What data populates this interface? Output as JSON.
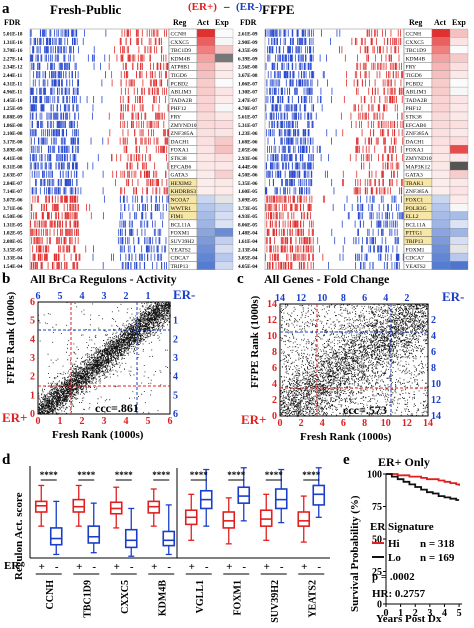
{
  "panel_a": {
    "letter": "a",
    "header_left": "(ER+)",
    "header_dash": "–",
    "header_right": "(ER-)",
    "left": {
      "title": "Fresh-Public",
      "fdr_label": "FDR",
      "reg_label": "Reg",
      "act_label": "Act",
      "exp_label": "Exp",
      "fdr_values": [
        "5.01E-18",
        "1.31E-16",
        "3.70E-16",
        "2.27E-14",
        "2.34E-12",
        "2.44E-11",
        "4.31E-11",
        "4.96E-11",
        "1.45E-10",
        "1.25E-09",
        "8.88E-09",
        "1.86E-08",
        "2.10E-08",
        "3.17E-08",
        "3.89E-08",
        "4.41E-08",
        "8.31E-08",
        "2.63E-07",
        "2.84E-07",
        "7.14E-07",
        "3.07E-06",
        "3.71E-06",
        "6.50E-06",
        "1.31E-05",
        "1.02E-05",
        "2.08E-05",
        "3.15E-05",
        "1.33E-04",
        "1.54E-04"
      ],
      "regulons": [
        "CCNH",
        "CXXC5",
        "TBC1D9",
        "KDM4B",
        "ATP8B1",
        "TIGD6",
        "PCBD2",
        "ABLIM3",
        "TADA2B",
        "PHF12",
        "FRY",
        "ZMYND10",
        "ZNF385A",
        "DACH1",
        "FOXA1",
        "STK38",
        "EFCAB6",
        "GATA3",
        "HEXIM2",
        "KHDRBS3",
        "NCOA7",
        "WWTR1",
        "FIM1",
        "BCL11A",
        "FOXM1",
        "SUV39H2",
        "YEATS2",
        "CDCA7",
        "TRIP13"
      ],
      "highlight": [
        18,
        19,
        20,
        21,
        22
      ],
      "act_colors": [
        "#e03030",
        "#e86060",
        "#f08080",
        "#f3a0a0",
        "#f7b5b5",
        "#f7c0c0",
        "#f9cccc",
        "#f9cccc",
        "#fad4d4",
        "#fad4d4",
        "#fbdada",
        "#fbdada",
        "#fce0e0",
        "#fce0e0",
        "#fce4e4",
        "#fde8e8",
        "#fde8e8",
        "#fdeaea",
        "#fdecec",
        "#fdeeee",
        "#c9d6f0",
        "#b5c6ec",
        "#a8bce8",
        "#9fb5e6",
        "#8aa5e0",
        "#7c9adc",
        "#6f90d8",
        "#6286d4",
        "#567cd0"
      ],
      "exp_colors": [
        "#fbfbfb",
        "#f7f7f7",
        "#f5c8c8",
        "#777777",
        "#fde8e8",
        "#fdeaea",
        "#fbfbfb",
        "#fce4e4",
        "#fdeaea",
        "#f7f7f7",
        "#fde8e8",
        "#fcdcdc",
        "#fde4e4",
        "#f7c9c9",
        "#f5c0c0",
        "#fce0e0",
        "#fce8e8",
        "#f9d0d0",
        "#fde8e8",
        "#fdeaea",
        "#e5e5e5",
        "#c8d4ee",
        "#d5def3",
        "#dbe3f5",
        "#6a8cd6",
        "#c2cff0",
        "#d5def3",
        "#b9c8ee",
        "#cfd9f2"
      ]
    },
    "right": {
      "title": "FFPE",
      "fdr_label": "FDR",
      "reg_label": "Reg",
      "act_label": "Act",
      "exp_label": "Exp",
      "fdr_values": [
        "2.61E-09",
        "2.90E-09",
        "4.35E-09",
        "6.39E-09",
        "2.56E-08",
        "3.67E-08",
        "1.06E-07",
        "1.30E-07",
        "2.47E-07",
        "4.70E-07",
        "5.61E-07",
        "5.31E-07",
        "1.23E-06",
        "1.68E-06",
        "2.05E-06",
        "2.93E-06",
        "4.44E-06",
        "4.50E-06",
        "5.35E-06",
        "1.60E-05",
        "3.09E-05",
        "3.73E-05",
        "4.93E-05",
        "8.06E-05",
        "1.48E-04",
        "1.61E-04",
        "2.13E-04",
        "3.05E-04",
        "4.05E-04"
      ],
      "regulons": [
        "CCNH",
        "CXXC5",
        "TBC1D9",
        "KDM4B",
        "FRY",
        "TIGD6",
        "PCBD2",
        "ABLIM3",
        "TADA2B",
        "PHF12",
        "STK38",
        "EFCAB6",
        "ZNF385A",
        "DACH1",
        "FOXA1",
        "ZMYND10",
        "MAP3K12",
        "GATA3",
        "TRAK1",
        "ZNF385A",
        "FOXC1",
        "POLR3G",
        "ELL2",
        "BCL11A",
        "PTTG1",
        "TRIP13",
        "FOXM1",
        "CDCA7",
        "YEATS2"
      ],
      "highlight": [
        18,
        20,
        21,
        22,
        24,
        25
      ],
      "act_colors": [
        "#e03030",
        "#e86060",
        "#f08080",
        "#f3a0a0",
        "#f7b5b5",
        "#f7c0c0",
        "#f9cccc",
        "#f9cccc",
        "#fad4d4",
        "#fad4d4",
        "#fbdada",
        "#fbdada",
        "#fce0e0",
        "#fce0e0",
        "#fce4e4",
        "#fde8e8",
        "#fde8e8",
        "#fdeaea",
        "#fdecec",
        "#fdeeee",
        "#c9d6f0",
        "#b5c6ec",
        "#a8bce8",
        "#9fb5e6",
        "#8aa5e0",
        "#7c9adc",
        "#6f90d8",
        "#6286d4",
        "#567cd0"
      ],
      "exp_colors": [
        "#f5c0c0",
        "#fde4e4",
        "#fbfbfb",
        "#f7c9c9",
        "#fce0e0",
        "#fde8e8",
        "#fbfbfb",
        "#f7f7f7",
        "#fde4e4",
        "#fce8e8",
        "#fde8e8",
        "#fce0e0",
        "#fde8e8",
        "#fcdcdc",
        "#e54c4c",
        "#fde8e8",
        "#555555",
        "#f9cccc",
        "#fde8e8",
        "#fce4e4",
        "#fdeaea",
        "#f7f7f7",
        "#a8bce8",
        "#dbe3f5",
        "#9fb5e6",
        "#d5def3",
        "#e5e5e5",
        "#b9c8ee",
        "#4f76cc"
      ]
    }
  },
  "panel_b": {
    "letter": "b",
    "title": "All BrCa Regulons - Activity",
    "xlabel": "Fresh Rank (1000s)",
    "ylabel": "FFPE Rank (1000s)",
    "er_minus": "ER-",
    "er_plus": "ER+",
    "ccc": "ccc=.861"
  },
  "panel_c": {
    "letter": "c",
    "title": "All Genes - Fold Change",
    "xlabel": "Fresh Rank (1000s)",
    "ylabel": "FFPE Rank (1000s)",
    "er_minus": "ER-",
    "er_plus": "ER+",
    "ccc": "ccc=.573"
  },
  "panel_d": {
    "letter": "d",
    "ylabel": "Regulon Act. score",
    "er_label": "ER",
    "stars": "****",
    "plus": "+",
    "minus": "-"
  },
  "panel_e": {
    "letter": "e",
    "title": "ER+ Only",
    "ylabel": "Survival Probability (%)",
    "xlabel": "Years Post Dx",
    "legend_title": "ER Signature",
    "hi_label": "Hi",
    "lo_label": "Lo",
    "hi_n": "n = 318",
    "lo_n": "n = 169",
    "pvalue": "p = .0002",
    "hr": "HR: 0.2757"
  },
  "chart_data": [
    {
      "type": "scatter",
      "panel": "b",
      "title": "All BrCa Regulons - Activity",
      "xlabel": "Fresh Rank (1000s)",
      "ylabel": "FFPE Rank (1000s)",
      "xlim": [
        0,
        6
      ],
      "ylim": [
        0,
        6
      ],
      "bottom_ticks": [
        0,
        1,
        2,
        3,
        4,
        5,
        6
      ],
      "top_ticks": [
        6,
        5,
        4,
        3,
        2,
        1
      ],
      "left_ticks": [
        0,
        1,
        2,
        3,
        4,
        5,
        6
      ],
      "right_ticks": [
        6,
        5,
        4,
        3,
        2,
        1
      ],
      "er_plus_cut": 1.5,
      "er_minus_cut": 4.5,
      "ccc": 0.861,
      "point_count": 4800
    },
    {
      "type": "scatter",
      "panel": "c",
      "title": "All Genes - Fold Change",
      "xlabel": "Fresh Rank (1000s)",
      "ylabel": "FFPE Rank (1000s)",
      "xlim": [
        0,
        14
      ],
      "ylim": [
        0,
        14
      ],
      "bottom_ticks": [
        0,
        2,
        4,
        6,
        8,
        10,
        12,
        14
      ],
      "top_ticks": [
        14,
        12,
        10,
        8,
        6,
        4,
        2
      ],
      "left_ticks": [
        0,
        2,
        4,
        6,
        8,
        10,
        12,
        14
      ],
      "right_ticks": [
        14,
        12,
        10,
        8,
        6,
        4,
        2
      ],
      "er_plus_cut": 3.5,
      "er_minus_cut": 10.5,
      "ccc": 0.573,
      "point_count": 5200
    },
    {
      "type": "box",
      "panel": "d",
      "ylabel": "Regulon Act. score",
      "categories": [
        "CCNH",
        "TBC1D9",
        "CXXC5",
        "KDM4B",
        "VGLL1",
        "FOXM1",
        "SUV39H2",
        "YEATS2"
      ],
      "series": [
        {
          "name": "+",
          "color": "#e02020",
          "boxes": [
            {
              "min": -0.8,
              "q1": 0.0,
              "median": 0.35,
              "q3": 0.6,
              "max": 1.5
            },
            {
              "min": -0.8,
              "q1": 0.0,
              "median": 0.3,
              "q3": 0.7,
              "max": 1.5
            },
            {
              "min": -0.9,
              "q1": -0.1,
              "median": 0.2,
              "q3": 0.55,
              "max": 1.4
            },
            {
              "min": -0.8,
              "q1": -0.05,
              "median": 0.3,
              "q3": 0.6,
              "max": 1.3
            },
            {
              "min": -1.6,
              "q1": -0.7,
              "median": -0.3,
              "q3": 0.1,
              "max": 1.0
            },
            {
              "min": -1.8,
              "q1": -0.9,
              "median": -0.5,
              "q3": 0.0,
              "max": 0.8
            },
            {
              "min": -1.6,
              "q1": -0.8,
              "median": -0.4,
              "q3": 0.1,
              "max": 1.0
            },
            {
              "min": -1.7,
              "q1": -0.8,
              "median": -0.5,
              "q3": 0.0,
              "max": 0.9
            }
          ]
        },
        {
          "name": "-",
          "color": "#1a3ec8",
          "boxes": [
            {
              "min": -2.4,
              "q1": -1.85,
              "median": -1.5,
              "q3": -0.9,
              "max": 0.6
            },
            {
              "min": -2.3,
              "q1": -1.75,
              "median": -1.4,
              "q3": -0.8,
              "max": 0.5
            },
            {
              "min": -2.5,
              "q1": -2.0,
              "median": -1.6,
              "q3": -1.0,
              "max": 0.2
            },
            {
              "min": -2.4,
              "q1": -1.9,
              "median": -1.6,
              "q3": -1.1,
              "max": 0.4
            },
            {
              "min": -0.8,
              "q1": 0.2,
              "median": 0.7,
              "q3": 1.2,
              "max": 2.4
            },
            {
              "min": -0.5,
              "q1": 0.5,
              "median": 0.9,
              "q3": 1.4,
              "max": 2.5
            },
            {
              "min": -0.6,
              "q1": 0.2,
              "median": 0.7,
              "q3": 1.3,
              "max": 2.4
            },
            {
              "min": -0.3,
              "q1": 0.4,
              "median": 1.0,
              "q3": 1.5,
              "max": 2.5
            }
          ]
        }
      ],
      "ylim": [
        -2.6,
        2.6
      ],
      "significance": "****"
    },
    {
      "type": "line",
      "panel": "e",
      "title": "ER+ Only",
      "xlabel": "Years Post Dx",
      "ylabel": "Survival Probability (%)",
      "xlim": [
        0,
        5.2
      ],
      "ylim": [
        0,
        100
      ],
      "xticks": [
        0,
        1,
        2,
        3,
        4,
        5
      ],
      "yticks": [
        0,
        25,
        50,
        75,
        100
      ],
      "series": [
        {
          "name": "Hi",
          "color": "#e02020",
          "x": [
            0,
            0.4,
            0.8,
            1.2,
            1.6,
            2.0,
            2.4,
            2.8,
            3.2,
            3.6,
            4.0,
            4.4,
            4.8,
            5.0
          ],
          "y": [
            100,
            100,
            99,
            99,
            98,
            98,
            97,
            96,
            96,
            95,
            94,
            93,
            92,
            91
          ]
        },
        {
          "name": "Lo",
          "color": "#111111",
          "x": [
            0,
            0.4,
            0.8,
            1.2,
            1.6,
            2.0,
            2.4,
            2.8,
            3.2,
            3.6,
            4.0,
            4.4,
            4.8,
            5.0
          ],
          "y": [
            100,
            98,
            96,
            94,
            92,
            90,
            88,
            86,
            85,
            83,
            82,
            81,
            80,
            80
          ]
        }
      ]
    }
  ]
}
